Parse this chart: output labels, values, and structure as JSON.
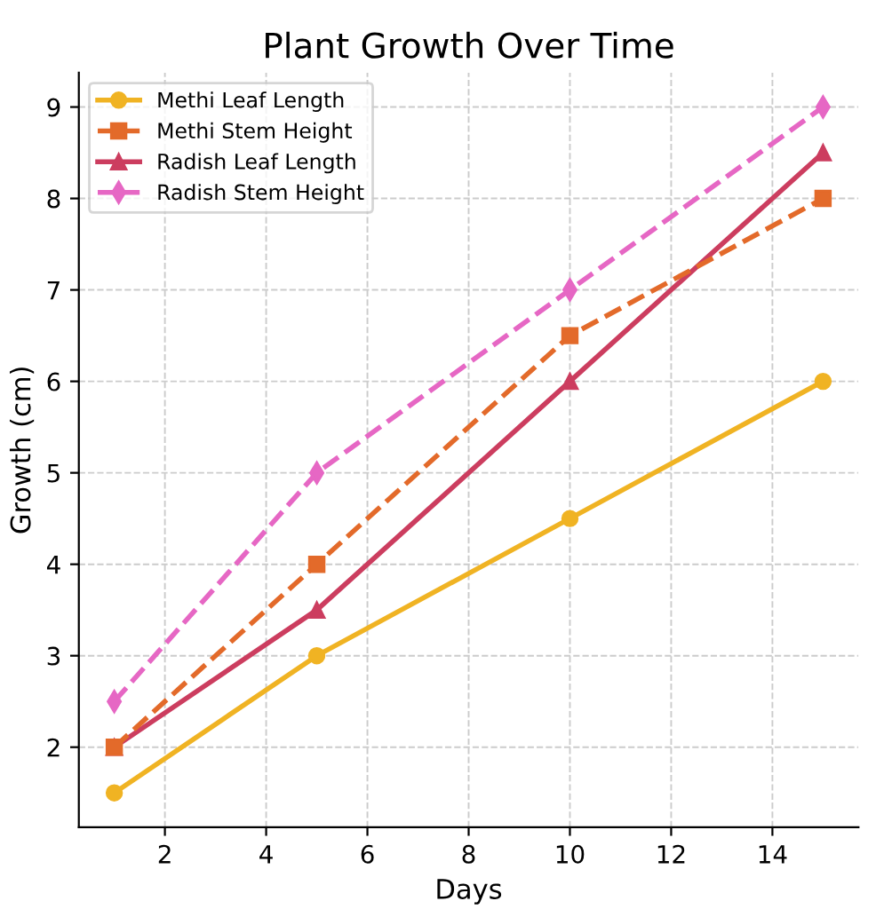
{
  "chart_data": {
    "type": "line",
    "title": "Plant Growth Over Time",
    "xlabel": "Days",
    "ylabel": "Growth (cm)",
    "x": [
      1,
      5,
      10,
      15
    ],
    "series": [
      {
        "name": "Methi Leaf Length",
        "color": "#f0b323",
        "values": [
          1.5,
          3,
          4.5,
          6
        ],
        "marker": "circle",
        "line_style": "solid"
      },
      {
        "name": "Methi Stem Height",
        "color": "#e36a2a",
        "values": [
          2,
          4,
          6.5,
          8
        ],
        "marker": "square",
        "line_style": "dashed"
      },
      {
        "name": "Radish Leaf Length",
        "color": "#cc3d5f",
        "values": [
          2,
          3.5,
          6,
          8.5
        ],
        "marker": "triangle",
        "line_style": "solid"
      },
      {
        "name": "Radish Stem Height",
        "color": "#e667c4",
        "values": [
          2.5,
          5,
          7,
          9
        ],
        "marker": "diamond",
        "line_style": "dashed"
      }
    ],
    "xlim": [
      0.3,
      15.7
    ],
    "ylim": [
      1.125,
      9.375
    ],
    "xticks": [
      2,
      4,
      6,
      8,
      10,
      12,
      14
    ],
    "yticks": [
      2,
      3,
      4,
      5,
      6,
      7,
      8,
      9
    ],
    "grid": true,
    "legend": "top left"
  }
}
